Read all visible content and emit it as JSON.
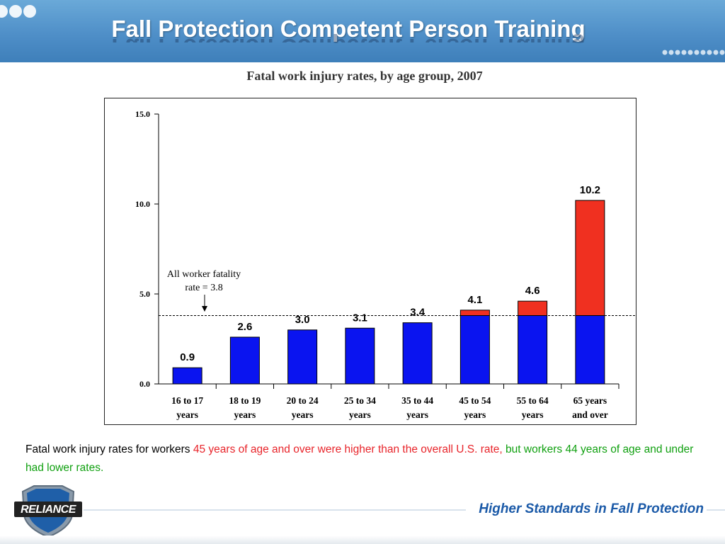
{
  "slide": {
    "title": "Fall Protection Competent Person Training",
    "caption": {
      "part1": "Fatal work injury rates for workers ",
      "part2_red": "45 years of age and over were higher than the overall U.S. rate, ",
      "part3_green": "but workers 44 years of age and under had lower rates."
    },
    "slogan": "Higher Standards in Fall Protection",
    "logo_text": "RELIANCE"
  },
  "colors": {
    "blue": "#0a14f0",
    "red": "#f03020",
    "caption_red": "#e8242a",
    "caption_green": "#10a010",
    "header_blue": "#4f8fc8"
  },
  "chart_data": {
    "type": "bar",
    "title": "Fatal work injury rates, by age group, 2007",
    "categories": [
      [
        "16 to 17",
        "years"
      ],
      [
        "18 to 19",
        "years"
      ],
      [
        "20 to 24",
        "years"
      ],
      [
        "25 to 34",
        "years"
      ],
      [
        "35 to 44",
        "years"
      ],
      [
        "45 to 54",
        "years"
      ],
      [
        "55 to 64",
        "years"
      ],
      [
        "65 years",
        "and over"
      ]
    ],
    "values": [
      0.9,
      2.6,
      3.0,
      3.1,
      3.4,
      4.1,
      4.6,
      10.2
    ],
    "value_labels": [
      "0.9",
      "2.6",
      "3.0",
      "3.1",
      "3.4",
      "4.1",
      "4.6",
      "10.2"
    ],
    "reference_line": {
      "value": 3.8,
      "label_line1": "All worker fatality",
      "label_line2": "rate = 3.8"
    },
    "ylim": [
      0,
      15
    ],
    "yticks": [
      0,
      5,
      10,
      15
    ],
    "ytick_labels": [
      "0.0",
      "5.0",
      "10.0",
      "15.0"
    ],
    "series_note": "portion above 3.8 shown in red, below in blue"
  }
}
